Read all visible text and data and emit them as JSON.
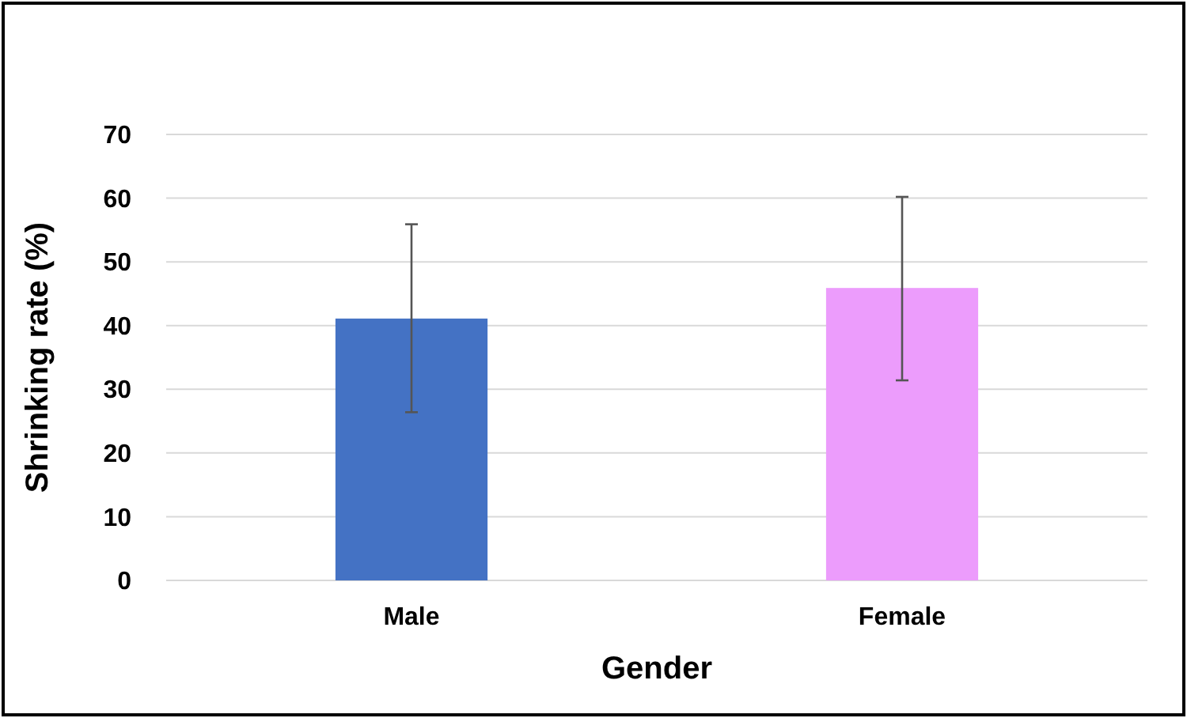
{
  "chart_data": {
    "type": "bar",
    "xlabel": "Gender",
    "ylabel": "Shrinking rate (%)",
    "categories": [
      "Male",
      "Female"
    ],
    "values": [
      41.1,
      45.9
    ],
    "colors": [
      "#4472c4",
      "#ec9cfc"
    ],
    "errors": [
      [
        26.4,
        55.9
      ],
      [
        31.4,
        60.2
      ]
    ],
    "ylim": [
      0,
      70
    ],
    "yticks": [
      0,
      10,
      20,
      30,
      40,
      50,
      60,
      70
    ],
    "grid": "y"
  }
}
